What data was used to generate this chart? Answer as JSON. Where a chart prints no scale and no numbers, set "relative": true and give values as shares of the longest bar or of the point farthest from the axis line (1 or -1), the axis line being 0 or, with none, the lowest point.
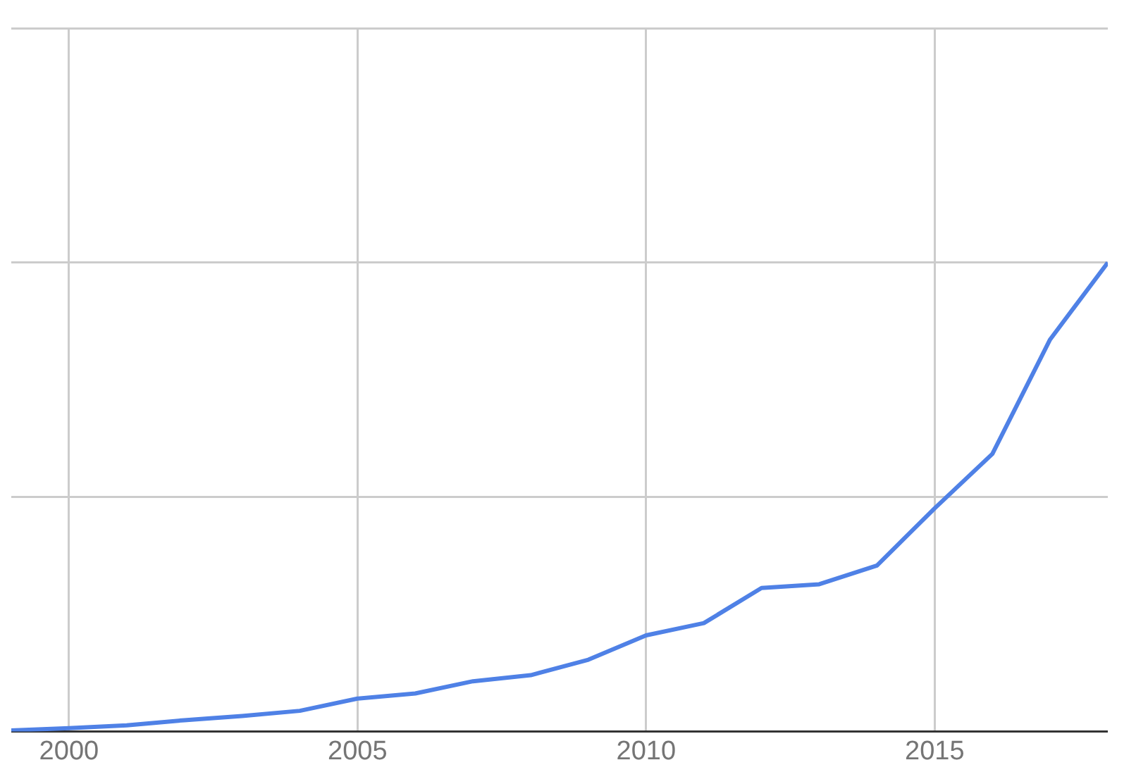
{
  "chart_data": {
    "type": "line",
    "relative": true,
    "x": [
      1999,
      2000,
      2001,
      2002,
      2003,
      2004,
      2005,
      2006,
      2007,
      2008,
      2009,
      2010,
      2011,
      2012,
      2013,
      2014,
      2015,
      2016,
      2017,
      2018
    ],
    "series": [
      {
        "color": "#4f81e6",
        "values": [
          0.002,
          0.007,
          0.013,
          0.024,
          0.033,
          0.044,
          0.07,
          0.081,
          0.107,
          0.12,
          0.153,
          0.205,
          0.231,
          0.306,
          0.314,
          0.354,
          0.476,
          0.592,
          0.836,
          1
        ]
      }
    ],
    "xlim": [
      1999,
      2018
    ],
    "xticks": [
      2000,
      2005,
      2010,
      2015
    ],
    "grid": true,
    "legend": false,
    "marker": "none",
    "line_style": "solid"
  }
}
